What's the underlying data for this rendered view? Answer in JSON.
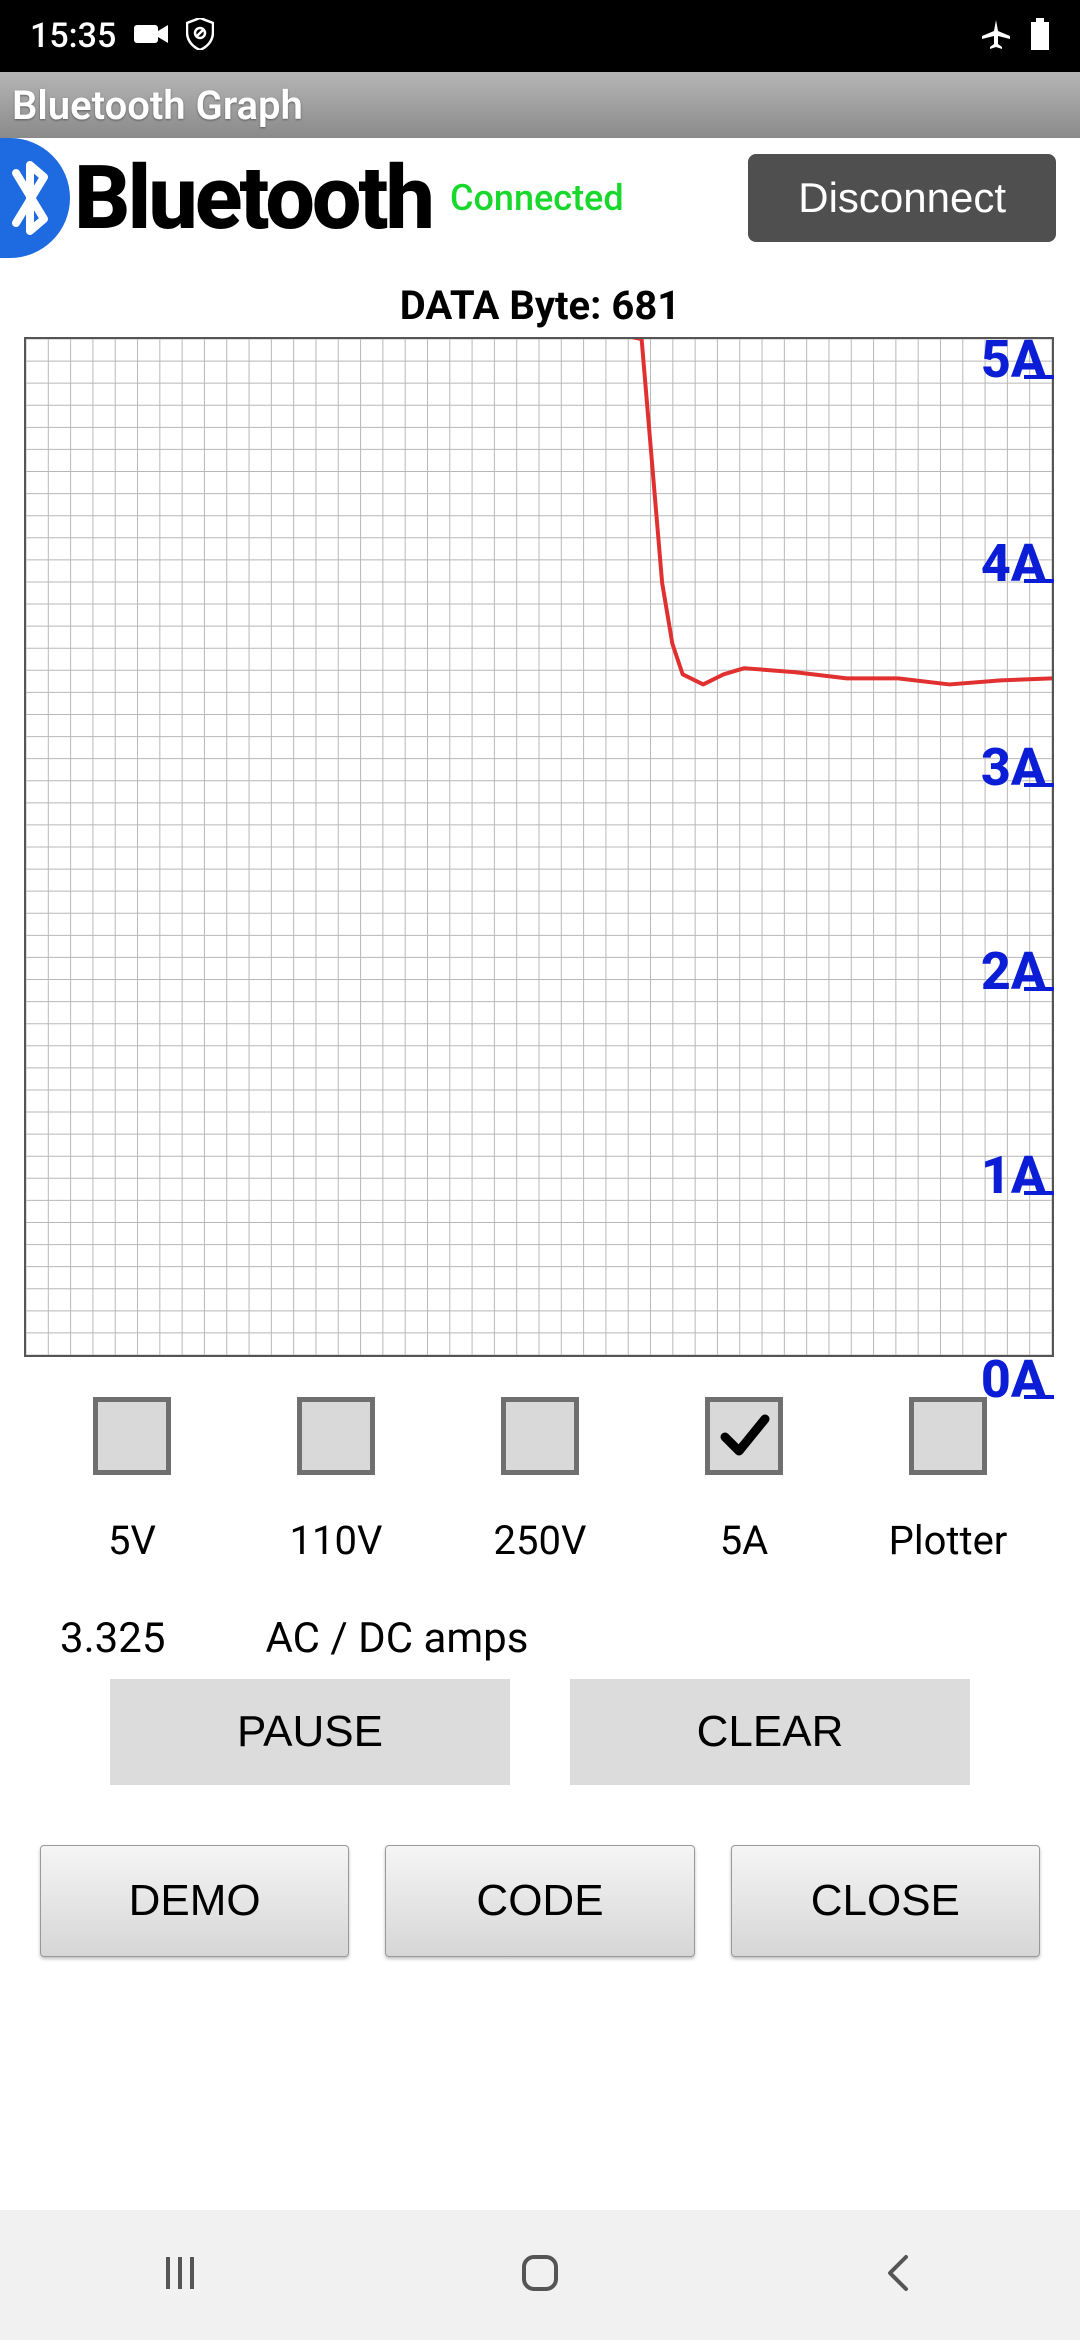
{
  "statusbar": {
    "time": "15:35"
  },
  "titlebar": {
    "text": "Bluetooth Graph"
  },
  "header": {
    "brand": "Bluetooth",
    "status": "Connected",
    "status_color": "#17d82b",
    "disconnect_label": "Disconnect"
  },
  "databyte": {
    "label": "DATA Byte: 681"
  },
  "chart": {
    "type": "line",
    "ylim": [
      0,
      5
    ],
    "ylabels": [
      "5A",
      "4A",
      "3A",
      "2A",
      "1A",
      "0A"
    ],
    "ylabel_color": "#0b1ed6",
    "ylabel_fontsize": 52,
    "grid_minor_color": "#b8b8b8",
    "grid_minor_cols": 46,
    "grid_minor_rows": 46,
    "trace_color": "#e03030",
    "trace_width": 4,
    "background_color": "#ffffff",
    "series_x": [
      0,
      10,
      20,
      30,
      40,
      50,
      55,
      58,
      60,
      61,
      62,
      63,
      64,
      66,
      68,
      70,
      75,
      80,
      85,
      90,
      95,
      100
    ],
    "series_y": [
      5.08,
      5.08,
      5.08,
      5.08,
      5.08,
      5.08,
      5.08,
      5.08,
      5.0,
      4.4,
      3.8,
      3.5,
      3.35,
      3.3,
      3.35,
      3.38,
      3.36,
      3.33,
      3.33,
      3.3,
      3.32,
      3.33
    ]
  },
  "checkboxes": {
    "items": [
      {
        "label": "5V",
        "checked": false
      },
      {
        "label": "110V",
        "checked": false
      },
      {
        "label": "250V",
        "checked": false
      },
      {
        "label": "5A",
        "checked": true
      },
      {
        "label": "Plotter",
        "checked": false
      }
    ]
  },
  "readout": {
    "value": "3.325",
    "unit": "AC / DC amps"
  },
  "buttons_a": {
    "pause": "PAUSE",
    "clear": "CLEAR"
  },
  "buttons_b": {
    "demo": "DEMO",
    "code": "CODE",
    "close": "CLOSE"
  }
}
